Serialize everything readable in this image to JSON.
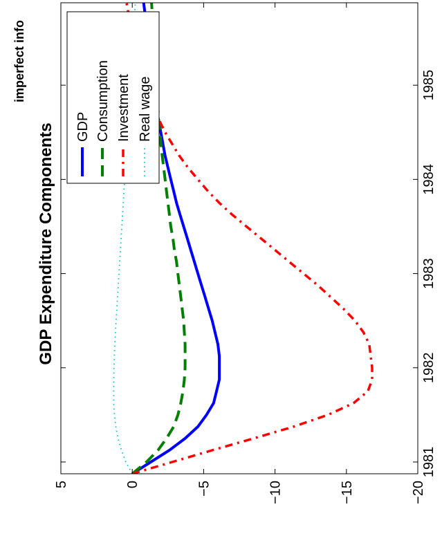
{
  "chart_data": {
    "type": "line",
    "title": "GDP Expenditure Components",
    "subtitle": "imperfect info",
    "xlim": [
      1980.875,
      1985.875
    ],
    "ylim": [
      -20,
      5
    ],
    "x_ticks": [
      1981,
      1982,
      1983,
      1984,
      1985
    ],
    "x_tick_labels": [
      "1981",
      "1982",
      "1983",
      "1984",
      "1985"
    ],
    "y_ticks": [
      5,
      0,
      -5,
      -10,
      -15,
      -20
    ],
    "y_tick_labels": [
      "5",
      "0",
      "−5",
      "−10",
      "−15",
      "−20"
    ],
    "grid": false,
    "legend_position": "top-right",
    "orientation": "rotated 90 degrees counter-clockwise",
    "x": [
      1980.875,
      1981.0,
      1981.125,
      1981.25,
      1981.375,
      1981.5,
      1981.625,
      1981.75,
      1981.875,
      1982.0,
      1982.125,
      1982.25,
      1982.375,
      1982.5,
      1982.625,
      1982.75,
      1982.875,
      1983.0,
      1983.125,
      1983.25,
      1983.375,
      1983.5,
      1983.625,
      1983.75,
      1983.875,
      1984.0,
      1984.125,
      1984.25,
      1984.375,
      1984.5,
      1984.625,
      1984.75,
      1984.875,
      1985.0,
      1985.125,
      1985.25,
      1985.375,
      1985.5,
      1985.625,
      1985.75,
      1985.875
    ],
    "series": [
      {
        "name": "GDP",
        "color": "#0000ff",
        "style": "solid",
        "values": [
          0.0,
          -1.3,
          -2.6,
          -3.7,
          -4.6,
          -5.2,
          -5.7,
          -5.9,
          -6.1,
          -6.1,
          -6.1,
          -6.0,
          -5.8,
          -5.6,
          -5.35,
          -5.1,
          -4.85,
          -4.6,
          -4.35,
          -4.1,
          -3.85,
          -3.6,
          -3.35,
          -3.1,
          -2.9,
          -2.7,
          -2.5,
          -2.3,
          -2.15,
          -2.0,
          -1.85,
          -1.7,
          -1.6,
          -1.5,
          -1.4,
          -1.3,
          -1.2,
          -1.1,
          -1.0,
          -0.9,
          -0.8
        ]
      },
      {
        "name": "Consumption",
        "color": "#008000",
        "style": "dashed",
        "values": [
          0.0,
          -1.0,
          -1.8,
          -2.4,
          -2.9,
          -3.2,
          -3.4,
          -3.55,
          -3.65,
          -3.7,
          -3.7,
          -3.7,
          -3.65,
          -3.6,
          -3.5,
          -3.4,
          -3.3,
          -3.2,
          -3.1,
          -2.95,
          -2.85,
          -2.7,
          -2.6,
          -2.5,
          -2.4,
          -2.3,
          -2.2,
          -2.1,
          -2.0,
          -1.95,
          -1.85,
          -1.8,
          -1.75,
          -1.7,
          -1.65,
          -1.6,
          -1.55,
          -1.5,
          -1.45,
          -1.4,
          -1.35
        ]
      },
      {
        "name": "Investment",
        "color": "#ff0000",
        "style": "dashdot",
        "values": [
          0.0,
          -2.8,
          -5.6,
          -8.5,
          -11.3,
          -13.7,
          -15.5,
          -16.5,
          -16.8,
          -16.8,
          -16.7,
          -16.6,
          -16.2,
          -15.6,
          -14.8,
          -13.9,
          -13.0,
          -12.0,
          -11.0,
          -10.0,
          -9.0,
          -8.0,
          -7.0,
          -6.1,
          -5.3,
          -4.6,
          -3.9,
          -3.3,
          -2.8,
          -2.3,
          -1.9,
          -1.5,
          -1.2,
          -0.9,
          -0.7,
          -0.5,
          -0.3,
          -0.1,
          0.1,
          0.25,
          0.4
        ]
      },
      {
        "name": "Real wage",
        "color": "#00bfbf",
        "style": "dotted",
        "values": [
          0.0,
          0.45,
          0.75,
          1.0,
          1.15,
          1.25,
          1.3,
          1.3,
          1.3,
          1.28,
          1.25,
          1.22,
          1.18,
          1.13,
          1.08,
          1.03,
          0.98,
          0.93,
          0.88,
          0.83,
          0.78,
          0.73,
          0.68,
          0.63,
          0.58,
          0.53,
          0.48,
          0.43,
          0.38,
          0.33,
          0.28,
          0.23,
          0.18,
          0.13,
          0.08,
          0.03,
          -0.02,
          -0.07,
          -0.12,
          -0.17,
          -0.22
        ]
      }
    ]
  }
}
